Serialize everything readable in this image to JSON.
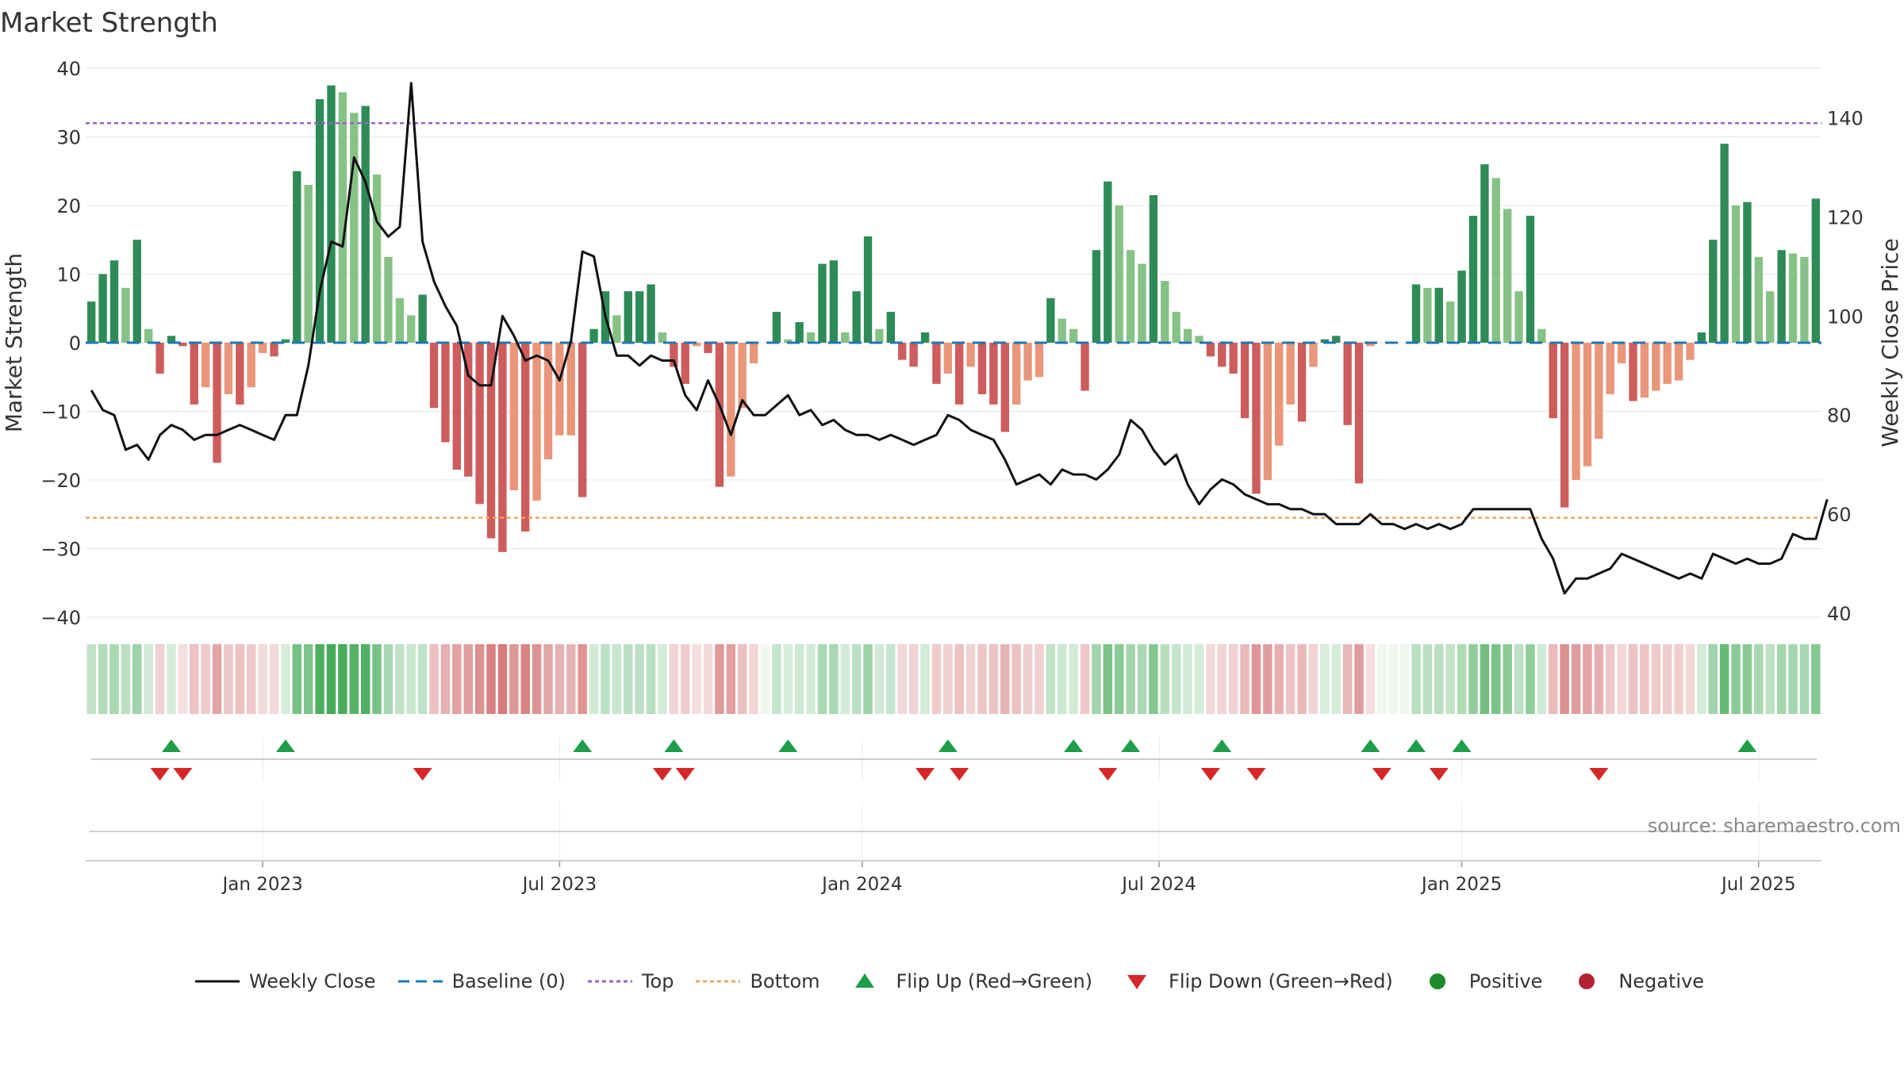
{
  "title": "Market Strength",
  "source": "source: sharemaestro.com",
  "colors": {
    "pos_dark": "#2e8b57",
    "pos_light": "#86c286",
    "neg_dark": "#cd5c5c",
    "neg_light": "#e9967a",
    "price_line": "#111111",
    "baseline": "#1f77b4",
    "top_line": "#9467bd",
    "bottom_line": "#f4a460",
    "flip_up": "#1e9e4a",
    "flip_down": "#d62728",
    "grid": "#e6e6e6"
  },
  "legend": {
    "weekly_close": "Weekly Close",
    "baseline": "Baseline (0)",
    "top": "Top",
    "bottom": "Bottom",
    "flip_up": "Flip Up (Red→Green)",
    "flip_down": "Flip Down (Green→Red)",
    "positive": "Positive",
    "negative": "Negative"
  },
  "chart_data": {
    "type": "bar",
    "title": "Market Strength",
    "ylabel_left": "Market Strength",
    "ylabel_right": "Weekly Close Price",
    "ylim_left": [
      -40,
      40
    ],
    "ylim_right": [
      40,
      150
    ],
    "yticks_left": [
      "40",
      "30",
      "20",
      "10",
      "0",
      "−10",
      "−20",
      "−30",
      "−40"
    ],
    "yticks_right": [
      "140",
      "120",
      "100",
      "80",
      "60",
      "40"
    ],
    "x_ticks": [
      "Jan 2023",
      "Jul 2023",
      "Jan 2024",
      "Jul 2024",
      "Jan 2025",
      "Jul 2025"
    ],
    "x_tick_week_index": [
      15,
      41,
      67.5,
      93.5,
      120,
      146
    ],
    "top_level": 32,
    "bottom_level": -25.5,
    "grid": true,
    "legend_position": "bottom",
    "series": [
      {
        "name": "Market Strength",
        "type": "bar",
        "values": [
          6,
          10,
          12,
          8,
          15,
          2,
          -4.5,
          1,
          -0.5,
          -9,
          -6.5,
          -17.5,
          -7.5,
          -9,
          -6.5,
          -1.5,
          -2,
          0.5,
          25,
          23,
          35.5,
          37.5,
          36.5,
          33.5,
          34.5,
          24.5,
          12.5,
          6.5,
          4,
          7,
          -9.5,
          -14.5,
          -18.5,
          -19.5,
          -23.5,
          -28.5,
          -30.5,
          -21.5,
          -27.5,
          -23,
          -17,
          -13.5,
          -13.5,
          -22.5,
          2,
          7.5,
          4,
          7.5,
          7.5,
          8.5,
          1.5,
          -3.5,
          -6,
          -0.5,
          -1.5,
          -21,
          -19.5,
          -9.5,
          -3,
          0,
          4.5,
          0.5,
          3,
          1.5,
          11.5,
          12,
          1.5,
          7.5,
          15.5,
          2,
          4.5,
          -2.5,
          -3.5,
          1.5,
          -6,
          -4.5,
          -9,
          -3.5,
          -7.5,
          -9,
          -13,
          -9,
          -5.5,
          -5,
          6.5,
          3.5,
          2,
          -7,
          13.5,
          23.5,
          20,
          13.5,
          11.5,
          21.5,
          9,
          4.5,
          2,
          1,
          -2,
          -3.5,
          -4.5,
          -11,
          -22,
          -20,
          -15,
          -9,
          -11.5,
          -3.5,
          0.5,
          1,
          -12,
          -20.5,
          -0.5,
          0,
          0,
          0,
          8.5,
          8,
          8,
          6,
          10.5,
          18.5,
          26,
          24,
          19.5,
          7.5,
          18.5,
          2,
          -11,
          -24,
          -20,
          -18,
          -14,
          -7.5,
          -3,
          -8.5,
          -8,
          -7,
          -6,
          -5.5,
          -2.5,
          1.5,
          15,
          29,
          20,
          20.5,
          12.5,
          7.5,
          13.5,
          13,
          12.5,
          21
        ]
      },
      {
        "name": "Weekly Close",
        "type": "line",
        "axis": "right",
        "values": [
          85,
          81,
          80,
          73,
          74,
          71,
          76,
          78,
          77,
          75,
          76,
          76,
          77,
          78,
          77,
          76,
          75,
          80,
          80,
          90,
          105,
          115,
          114,
          132,
          127,
          119,
          116,
          118,
          147,
          115,
          107,
          102,
          98,
          88,
          86,
          86,
          100,
          96,
          91,
          92,
          91,
          87,
          95,
          113,
          112,
          100,
          92,
          92,
          90,
          92,
          91,
          91,
          84,
          81,
          87,
          82,
          76,
          83,
          80,
          80,
          82,
          84,
          80,
          81,
          78,
          79,
          77,
          76,
          76,
          75,
          76,
          75,
          74,
          75,
          76,
          80,
          79,
          77,
          76,
          75,
          71,
          66,
          67,
          68,
          66,
          69,
          68,
          68,
          67,
          69,
          72,
          79,
          77,
          73,
          70,
          72,
          66,
          62,
          65,
          67,
          66,
          64,
          63,
          62,
          62,
          61,
          61,
          60,
          60,
          58,
          58,
          58,
          60,
          58,
          58,
          57,
          58,
          57,
          58,
          57,
          58,
          61,
          61,
          61,
          61,
          61,
          61,
          55,
          51,
          44,
          47,
          47,
          48,
          49,
          52,
          51,
          50,
          49,
          48,
          47,
          48,
          47,
          52,
          51,
          50,
          51,
          50,
          50,
          51,
          56,
          55,
          55,
          63
        ]
      }
    ],
    "flip_up_weeks": [
      7,
      17,
      43,
      51,
      61,
      75,
      86,
      91,
      99,
      112,
      116,
      120,
      145
    ],
    "flip_down_weeks": [
      6,
      8,
      29,
      50,
      52,
      73,
      76,
      89,
      98,
      102,
      113,
      118,
      132
    ]
  }
}
